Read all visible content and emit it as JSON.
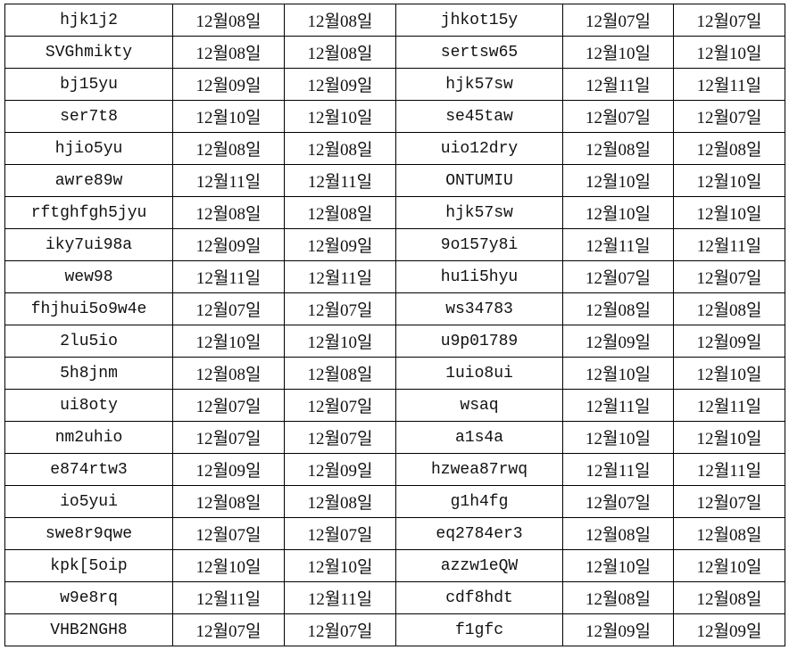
{
  "rows": [
    {
      "a": "hjk1j2",
      "a1": "12월08일",
      "a2": "12월08일",
      "b": "jhkot15y",
      "b1": "12월07일",
      "b2": "12월07일"
    },
    {
      "a": "SVGhmikty",
      "a1": "12월08일",
      "a2": "12월08일",
      "b": "sertsw65",
      "b1": "12월10일",
      "b2": "12월10일"
    },
    {
      "a": "bj15yu",
      "a1": "12월09일",
      "a2": "12월09일",
      "b": "hjk57sw",
      "b1": "12월11일",
      "b2": "12월11일"
    },
    {
      "a": "ser7t8",
      "a1": "12월10일",
      "a2": "12월10일",
      "b": "se45taw",
      "b1": "12월07일",
      "b2": "12월07일"
    },
    {
      "a": "hjio5yu",
      "a1": "12월08일",
      "a2": "12월08일",
      "b": "uio12dry",
      "b1": "12월08일",
      "b2": "12월08일"
    },
    {
      "a": "awre89w",
      "a1": "12월11일",
      "a2": "12월11일",
      "b": "ONTUMIU",
      "b1": "12월10일",
      "b2": "12월10일"
    },
    {
      "a": "rftghfgh5jyu",
      "a1": "12월08일",
      "a2": "12월08일",
      "b": "hjk57sw",
      "b1": "12월10일",
      "b2": "12월10일"
    },
    {
      "a": "iky7ui98a",
      "a1": "12월09일",
      "a2": "12월09일",
      "b": "9o157y8i",
      "b1": "12월11일",
      "b2": "12월11일"
    },
    {
      "a": "wew98",
      "a1": "12월11일",
      "a2": "12월11일",
      "b": "hu1i5hyu",
      "b1": "12월07일",
      "b2": "12월07일"
    },
    {
      "a": "fhjhui5o9w4e",
      "a1": "12월07일",
      "a2": "12월07일",
      "b": "ws34783",
      "b1": "12월08일",
      "b2": "12월08일"
    },
    {
      "a": "2lu5io",
      "a1": "12월10일",
      "a2": "12월10일",
      "b": "u9p01789",
      "b1": "12월09일",
      "b2": "12월09일"
    },
    {
      "a": "5h8jnm",
      "a1": "12월08일",
      "a2": "12월08일",
      "b": "1uio8ui",
      "b1": "12월10일",
      "b2": "12월10일"
    },
    {
      "a": "ui8oty",
      "a1": "12월07일",
      "a2": "12월07일",
      "b": "wsaq",
      "b1": "12월11일",
      "b2": "12월11일"
    },
    {
      "a": "nm2uhio",
      "a1": "12월07일",
      "a2": "12월07일",
      "b": "a1s4a",
      "b1": "12월10일",
      "b2": "12월10일"
    },
    {
      "a": "e874rtw3",
      "a1": "12월09일",
      "a2": "12월09일",
      "b": "hzwea87rwq",
      "b1": "12월11일",
      "b2": "12월11일"
    },
    {
      "a": "io5yui",
      "a1": "12월08일",
      "a2": "12월08일",
      "b": "g1h4fg",
      "b1": "12월07일",
      "b2": "12월07일"
    },
    {
      "a": "swe8r9qwe",
      "a1": "12월07일",
      "a2": "12월07일",
      "b": "eq2784er3",
      "b1": "12월08일",
      "b2": "12월08일"
    },
    {
      "a": "kpk[5oip",
      "a1": "12월10일",
      "a2": "12월10일",
      "b": "azzw1eQW",
      "b1": "12월10일",
      "b2": "12월10일"
    },
    {
      "a": "w9e8rq",
      "a1": "12월11일",
      "a2": "12월11일",
      "b": "cdf8hdt",
      "b1": "12월08일",
      "b2": "12월08일"
    },
    {
      "a": "VHB2NGH8",
      "a1": "12월07일",
      "a2": "12월07일",
      "b": "f1gfc",
      "b1": "12월09일",
      "b2": "12월09일"
    }
  ]
}
